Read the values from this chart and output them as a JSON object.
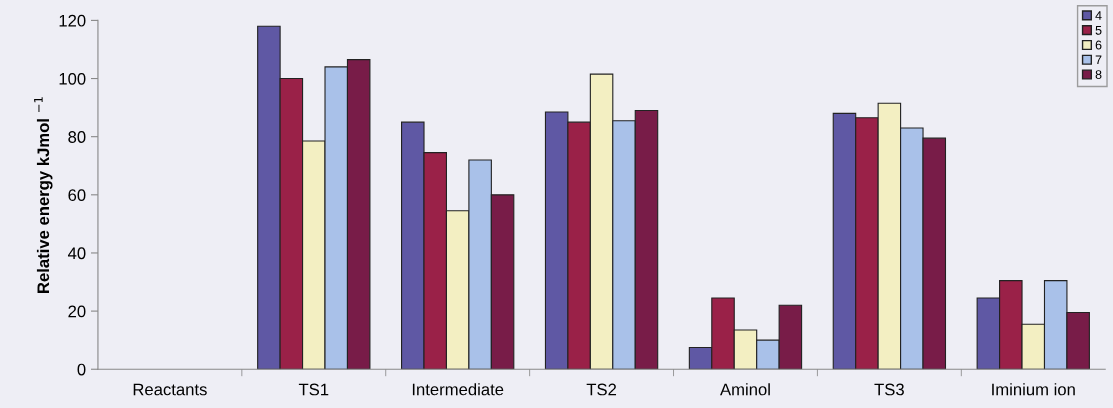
{
  "chart_data": {
    "type": "bar",
    "ylabel": "Relative energy kJmol $^{−1}$",
    "categories": [
      "Reactants",
      "TS1",
      "Intermediate",
      "TS2",
      "Aminol",
      "TS3",
      "Iminium ion"
    ],
    "series": [
      {
        "name": "4",
        "color": "#5f58a4",
        "values": [
          0,
          118,
          85,
          88.5,
          7.5,
          88,
          24.5
        ]
      },
      {
        "name": "5",
        "color": "#9a2148",
        "values": [
          0,
          100,
          74.5,
          85,
          24.5,
          86.5,
          30.5
        ]
      },
      {
        "name": "6",
        "color": "#f3efc2",
        "values": [
          0,
          78.5,
          54.5,
          101.5,
          13.5,
          91.5,
          15.5
        ]
      },
      {
        "name": "7",
        "color": "#a9c1e9",
        "values": [
          0,
          104,
          72,
          85.5,
          10,
          83,
          30.5
        ]
      },
      {
        "name": "8",
        "color": "#781c48",
        "values": [
          0,
          106.5,
          60,
          89,
          22,
          79.5,
          19.5
        ]
      }
    ],
    "ylim": [
      0,
      120
    ],
    "yticks": [
      0,
      20,
      40,
      60,
      80,
      100,
      120
    ],
    "grid": false,
    "legend": "top right"
  }
}
